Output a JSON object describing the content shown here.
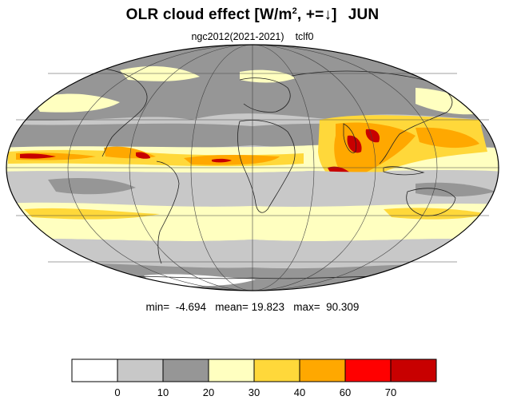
{
  "chart_data": {
    "type": "heatmap",
    "title": {
      "prefix": "OLR cloud effect [W/m",
      "sup": "2",
      "suffix": ", +=↓]",
      "month": "JUN"
    },
    "subtitle": {
      "experiment": "ngc2012(2021-2021)",
      "variable": "tclf0"
    },
    "projection": "mollweide",
    "stats": {
      "min_label": "min=",
      "min": "-4.694",
      "mean_label": "mean=",
      "mean": "19.823",
      "max_label": "max=",
      "max": "90.309"
    },
    "colorbar": {
      "levels": [
        "0",
        "10",
        "20",
        "30",
        "40",
        "60",
        "70"
      ],
      "colors": [
        "#ffffff",
        "#c8c8c8",
        "#969696",
        "#ffffc0",
        "#ffd83a",
        "#ffa800",
        "#ff0000",
        "#c80000"
      ]
    }
  }
}
